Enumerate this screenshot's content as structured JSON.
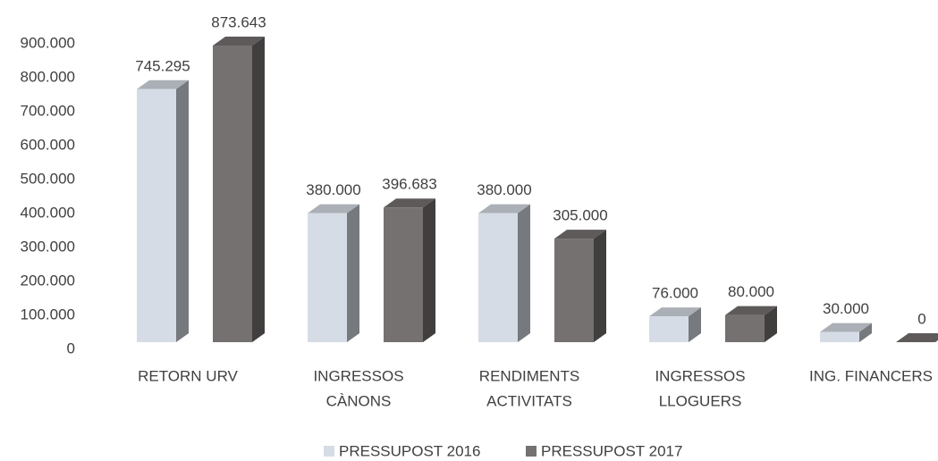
{
  "chart_data": {
    "type": "bar3d",
    "categories": [
      [
        "RETORN URV"
      ],
      [
        "INGRESSOS",
        "CÀNONS"
      ],
      [
        "RENDIMENTS",
        "ACTIVITATS"
      ],
      [
        "INGRESSOS",
        "LLOGUERS"
      ],
      [
        "ING. FINANCERS"
      ]
    ],
    "series": [
      {
        "name": "PRESSUPOST 2016",
        "color": "#d6dce5",
        "values": [
          745295,
          380000,
          380000,
          76000,
          30000
        ],
        "value_labels": [
          "745.295",
          "380.000",
          "380.000",
          "76.000",
          "30.000"
        ]
      },
      {
        "name": "PRESSUPOST 2017",
        "color": "#767171",
        "values": [
          873643,
          396683,
          305000,
          80000,
          0
        ],
        "value_labels": [
          "873.643",
          "396.683",
          "305.000",
          "80.000",
          "0"
        ]
      }
    ],
    "ylim": [
      0,
      900000
    ],
    "yticks": [
      0,
      {
        "value": 100000,
        "label": "100.000"
      },
      {
        "value": 200000,
        "label": "200.000"
      },
      {
        "value": 300000,
        "label": "300.000"
      },
      {
        "value": 400000,
        "label": "400.000"
      },
      {
        "value": 500000,
        "label": "500.000"
      },
      {
        "value": 600000,
        "label": "600.000"
      },
      {
        "value": 700000,
        "label": "700.000"
      },
      {
        "value": 800000,
        "label": "800.000"
      },
      {
        "value": 900000,
        "label": "900.000"
      }
    ],
    "grid": false,
    "legend": "bottom"
  }
}
